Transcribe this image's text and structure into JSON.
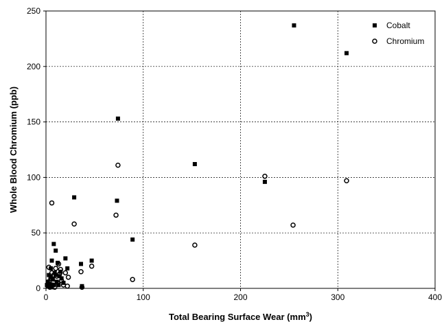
{
  "chart_data": {
    "type": "scatter",
    "title": "",
    "xlabel": "Total Bearing Surface Wear (mm",
    "xlabel_superscript": "3",
    "xlabel_suffix": ")",
    "ylabel": "Whole Blood Chromium (ppb)",
    "xlim": [
      0,
      400
    ],
    "ylim": [
      0,
      250
    ],
    "xticks": [
      0,
      100,
      200,
      300,
      400
    ],
    "yticks": [
      0,
      50,
      100,
      150,
      200,
      250
    ],
    "grid": {
      "style": "dashed",
      "on": true
    },
    "legend_position": "top-right",
    "series": [
      {
        "name": "Cobalt",
        "marker": "filled-square",
        "color": "#000000",
        "points": [
          [
            255,
            237
          ],
          [
            309,
            212
          ],
          [
            74,
            153
          ],
          [
            153,
            112
          ],
          [
            225,
            96
          ],
          [
            29,
            82
          ],
          [
            73,
            79
          ],
          [
            89,
            44
          ],
          [
            47,
            25
          ],
          [
            36,
            22
          ],
          [
            20,
            27
          ],
          [
            8,
            40
          ],
          [
            10,
            34
          ],
          [
            6,
            25
          ],
          [
            12,
            23
          ],
          [
            22,
            18
          ],
          [
            15,
            15
          ],
          [
            3,
            12
          ],
          [
            5,
            10
          ],
          [
            9,
            14
          ],
          [
            2,
            6
          ],
          [
            4,
            4
          ],
          [
            7,
            8
          ],
          [
            11,
            6
          ],
          [
            13,
            3
          ],
          [
            16,
            9
          ],
          [
            18,
            5
          ],
          [
            3,
            2
          ],
          [
            6,
            1
          ],
          [
            1,
            3
          ],
          [
            8,
            3
          ],
          [
            10,
            12
          ],
          [
            14,
            11
          ],
          [
            37,
            2
          ],
          [
            5,
            18
          ]
        ]
      },
      {
        "name": "Chromium",
        "marker": "open-circle",
        "color": "#000000",
        "points": [
          [
            225,
            101
          ],
          [
            309,
            97
          ],
          [
            254,
            57
          ],
          [
            153,
            39
          ],
          [
            74,
            111
          ],
          [
            72,
            66
          ],
          [
            29,
            58
          ],
          [
            6,
            77
          ],
          [
            89,
            8
          ],
          [
            47,
            20
          ],
          [
            36,
            15
          ],
          [
            23,
            10
          ],
          [
            20,
            14
          ],
          [
            13,
            22
          ],
          [
            15,
            17
          ],
          [
            10,
            18
          ],
          [
            8,
            12
          ],
          [
            5,
            9
          ],
          [
            3,
            6
          ],
          [
            12,
            5
          ],
          [
            7,
            3
          ],
          [
            16,
            7
          ],
          [
            18,
            3
          ],
          [
            2,
            2
          ],
          [
            4,
            1
          ],
          [
            9,
            1
          ],
          [
            11,
            11
          ],
          [
            37,
            1
          ],
          [
            22,
            2
          ],
          [
            14,
            13
          ],
          [
            6,
            14
          ],
          [
            3,
            19
          ]
        ]
      }
    ]
  }
}
